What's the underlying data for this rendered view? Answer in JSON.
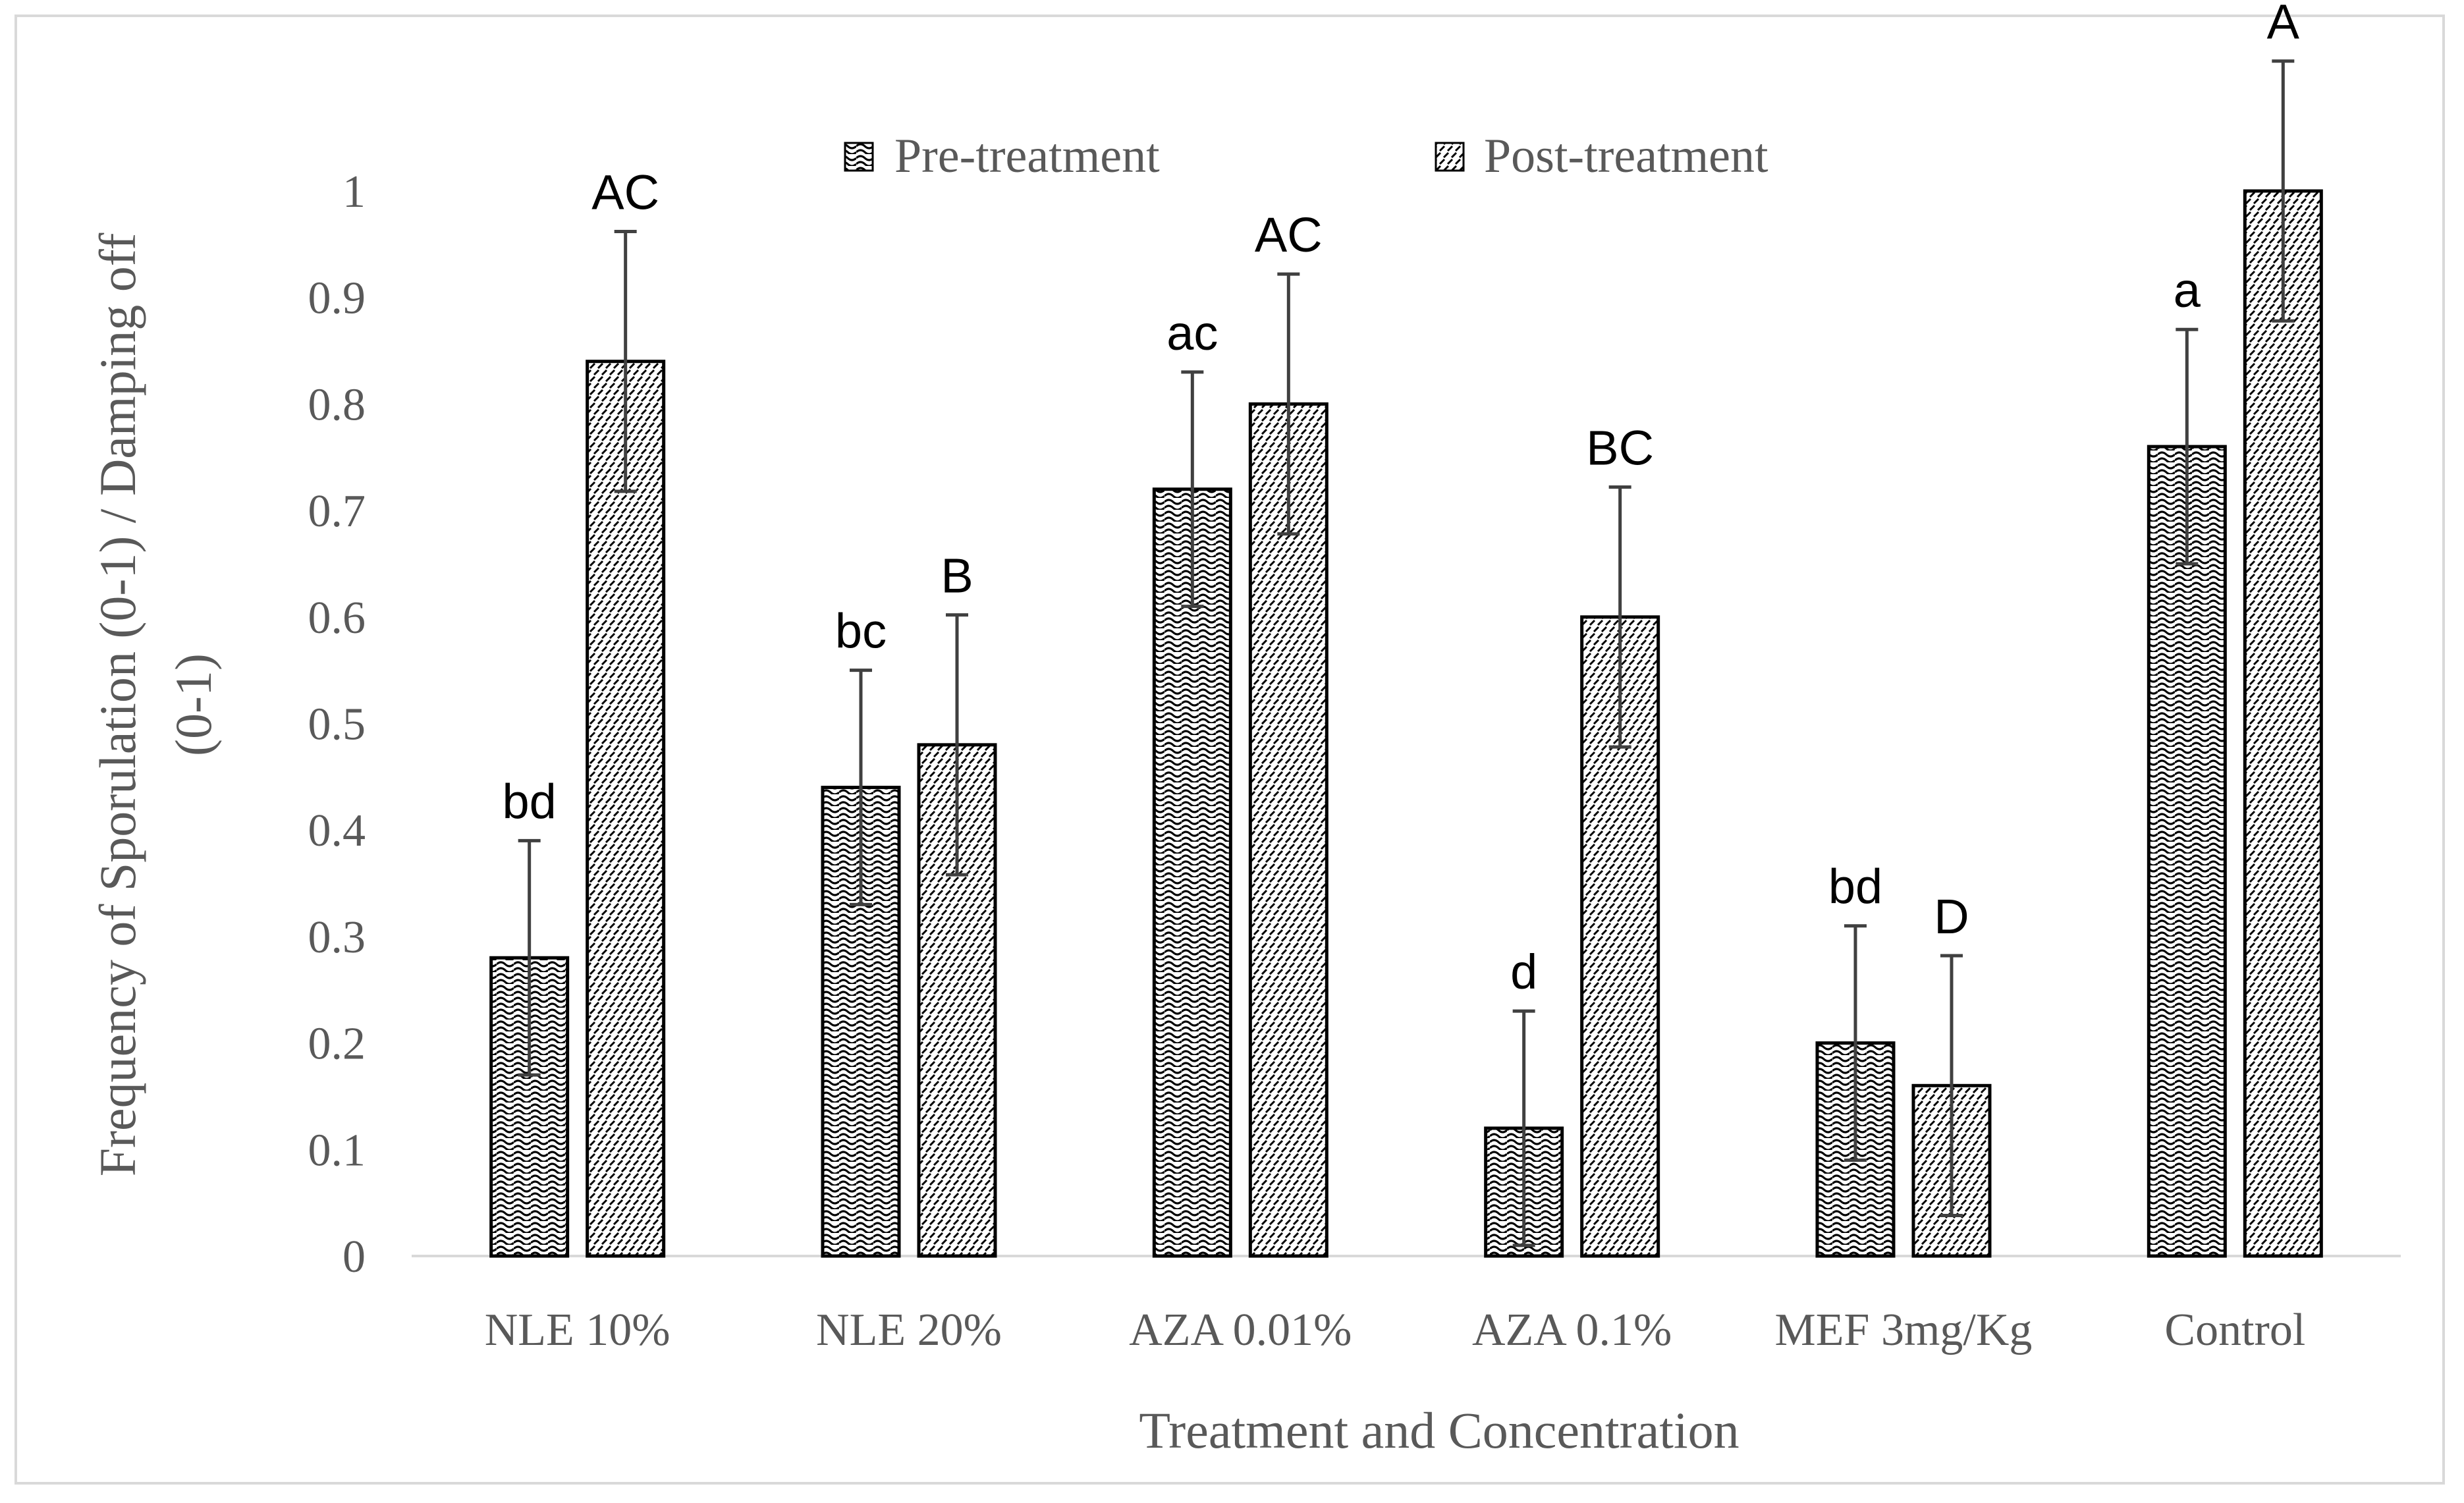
{
  "chart_data": {
    "type": "bar",
    "title": "",
    "xlabel": "Treatment and Concentration",
    "ylabel": "Frequency of Sporulation (0-1) / Damping off (0-1)",
    "ylabel_lines": [
      "Frequency of Sporulation (0-1) / Damping off",
      "(0-1)"
    ],
    "ylim": [
      0,
      1
    ],
    "yticks": [
      "0",
      "0.1",
      "0.2",
      "0.3",
      "0.4",
      "0.5",
      "0.6",
      "0.7",
      "0.8",
      "0.9",
      "1"
    ],
    "categories": [
      "NLE 10%",
      "NLE 20%",
      "AZA 0.01%",
      "AZA 0.1%",
      "MEF 3mg/Kg",
      "Control"
    ],
    "legend_position": "top-center",
    "series": [
      {
        "name": "Pre-treatment",
        "pattern": "wave",
        "values": [
          0.28,
          0.44,
          0.72,
          0.12,
          0.2,
          0.76
        ],
        "errors": [
          0.11,
          0.11,
          0.11,
          0.11,
          0.11,
          0.11
        ],
        "letters": [
          "bd",
          "bc",
          "ac",
          "d",
          "bd",
          "a"
        ]
      },
      {
        "name": "Post-treatment",
        "pattern": "diagonal",
        "values": [
          0.84,
          0.48,
          0.8,
          0.6,
          0.16,
          1.0
        ],
        "errors": [
          0.122,
          0.122,
          0.122,
          0.122,
          0.122,
          0.122
        ],
        "letters": [
          "AC",
          "B",
          "AC",
          "BC",
          "D",
          "A"
        ]
      }
    ],
    "colors": {
      "bar_stroke": "#000000",
      "error_bar": "#404040",
      "axis": "#d9d9d9",
      "text": "#595959"
    }
  }
}
